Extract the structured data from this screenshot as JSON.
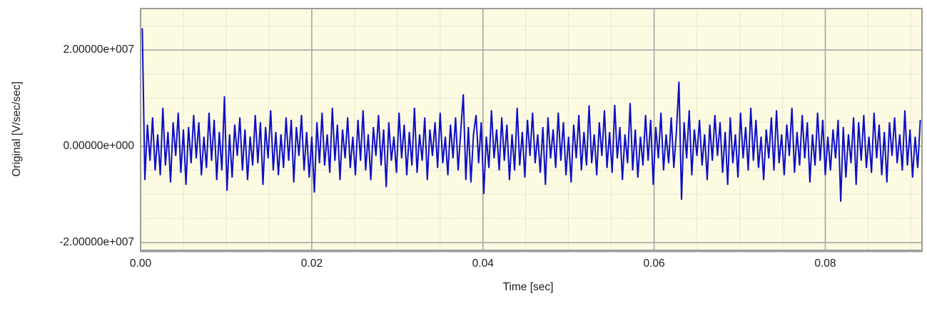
{
  "chart_data": {
    "type": "line",
    "title": "",
    "xlabel": "Time [sec]",
    "ylabel": "Original [V/sec/sec]",
    "xlim": [
      0,
      0.0913
    ],
    "ylim": [
      -21600000,
      28600000
    ],
    "x_ticks": [
      {
        "value": 0.0,
        "label": "0.00"
      },
      {
        "value": 0.02,
        "label": "0.02"
      },
      {
        "value": 0.04,
        "label": "0.04"
      },
      {
        "value": 0.06,
        "label": "0.06"
      },
      {
        "value": 0.08,
        "label": "0.08"
      }
    ],
    "y_ticks": [
      {
        "value": 20000000,
        "label": "2.00000e+007"
      },
      {
        "value": 0,
        "label": "0.00000e+000"
      },
      {
        "value": -20000000,
        "label": "-2.00000e+007"
      }
    ],
    "x_minor_step": 0.005,
    "y_minor_step": 5000000,
    "grid": "major-solid-minor-dotted",
    "legend": "none",
    "series": [
      {
        "name": "Original",
        "t0": 0.0002,
        "dt": 0.0003,
        "value_scale": 1000000,
        "values": [
          24.5,
          -7,
          4.5,
          -3,
          6,
          -5,
          2.5,
          -6,
          8,
          -4,
          3,
          -7.5,
          5,
          -2,
          7,
          -5.5,
          3.5,
          -8,
          4,
          -3.5,
          6.5,
          -2.5,
          5,
          -6,
          2,
          -4.5,
          7,
          -3,
          5.5,
          -7,
          3,
          -5,
          10.4,
          -9.2,
          2.5,
          -6.5,
          4.5,
          -2,
          6,
          -5,
          3.5,
          -7,
          2,
          -4,
          6.5,
          -3.5,
          5,
          -8,
          4,
          -2.5,
          7.5,
          -5,
          3,
          -6,
          2.5,
          -4.5,
          6,
          -3,
          5.5,
          -7.5,
          4,
          -2,
          6.5,
          -5,
          3,
          -6.5,
          2,
          -9.6,
          5,
          -3.5,
          7,
          -4,
          2.5,
          -5.5,
          8,
          -3,
          4.5,
          -7,
          3.5,
          -2.5,
          6,
          -4.5,
          2,
          -6,
          5.5,
          -3,
          7.5,
          -5,
          2.5,
          -7,
          4,
          -2,
          6.5,
          -4,
          3.5,
          -8.5,
          5,
          -3,
          2,
          -5.5,
          7,
          -2.5,
          4.5,
          -6,
          3,
          -4,
          8,
          -5.5,
          2.5,
          -3,
          6,
          -7,
          3.5,
          -2,
          5,
          -4.5,
          7,
          -3.5,
          2,
          -6,
          4.5,
          -2.5,
          6,
          -5,
          3,
          10.8,
          -7,
          4,
          -7.5,
          2.5,
          6.5,
          -3.5,
          5,
          -9.9,
          2,
          -4.5,
          7.5,
          -2.5,
          3.5,
          -5,
          6,
          -3,
          4.5,
          -7,
          2.5,
          -5,
          8,
          -4,
          3,
          -6.5,
          5.5,
          -2,
          7,
          -3.5,
          2.5,
          -5.5,
          4,
          -8,
          6,
          -2.5,
          3.5,
          -4.5,
          7,
          -3,
          5,
          -6,
          2,
          -7.5,
          4.5,
          -2.5,
          6.5,
          -5,
          3,
          -4,
          8.5,
          -3.5,
          2.5,
          -6,
          5,
          -2,
          7.5,
          -4.5,
          3,
          -5.5,
          8.6,
          -2.5,
          4,
          -7,
          2.5,
          -3.5,
          9,
          -5,
          3.5,
          -6.5,
          2,
          -4,
          6.5,
          -3,
          5.5,
          -8,
          4,
          -2.5,
          7,
          -5,
          2.5,
          -3.5,
          6,
          -4.5,
          3,
          13.4,
          -11.1,
          5,
          -2.5,
          7.5,
          -6,
          3.5,
          -2,
          5.5,
          -4,
          2.5,
          -7,
          4.5,
          -3,
          6.5,
          -2,
          5,
          -5.5,
          3,
          -8,
          6,
          -3.5,
          2.5,
          -6.5,
          7,
          -2.5,
          4,
          -5,
          8,
          -3,
          5.5,
          -4.5,
          2,
          -7,
          3.5,
          -2.5,
          6,
          -5,
          7.5,
          -3.5,
          2.5,
          -6,
          4.5,
          -2,
          8,
          -5.5,
          3,
          -4,
          6.5,
          -2.5,
          5,
          -7.5,
          2.5,
          -4,
          7,
          -3,
          5.5,
          -6,
          2,
          -5,
          3.5,
          -2.5,
          5.5,
          -11.5,
          4,
          -6.5,
          2.5,
          -3.5,
          6,
          -8,
          5,
          -3,
          6.5,
          -4.5,
          2,
          -5.5,
          7,
          -2.5,
          4.5,
          -6,
          3,
          -7.5,
          5,
          -2,
          6,
          -3.5,
          2.5,
          -5,
          7.5,
          -4,
          3.5,
          -6.5,
          2,
          -4.5,
          5.5
        ]
      }
    ],
    "colors": {
      "outer_bg": "#ffffff",
      "plot_bg": "#fcfbe2",
      "grid_major": "#a5a5a5",
      "grid_minor": "#bdbdb0",
      "border": "#9b9b9b",
      "line": "#0e0ec6",
      "text": "#1c1c1c"
    }
  }
}
